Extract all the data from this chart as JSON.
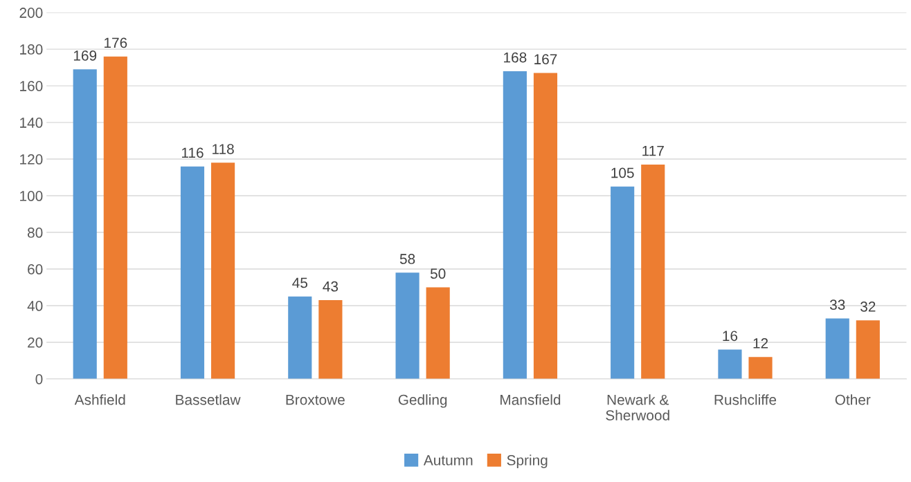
{
  "chart_data": {
    "type": "bar",
    "categories": [
      "Ashfield",
      "Bassetlaw",
      "Broxtowe",
      "Gedling",
      "Mansfield",
      "Newark &\nSherwood",
      "Rushcliffe",
      "Other"
    ],
    "series": [
      {
        "name": "Autumn",
        "color": "#5b9bd5",
        "values": [
          169,
          116,
          45,
          58,
          168,
          105,
          16,
          33
        ]
      },
      {
        "name": "Spring",
        "color": "#ed7d31",
        "values": [
          176,
          118,
          43,
          50,
          167,
          117,
          12,
          32
        ]
      }
    ],
    "ylim": [
      0,
      200
    ],
    "yticks": [
      0,
      20,
      40,
      60,
      80,
      100,
      120,
      140,
      160,
      180,
      200
    ],
    "grid": "y",
    "legend": "bottom",
    "data_labels": true
  }
}
